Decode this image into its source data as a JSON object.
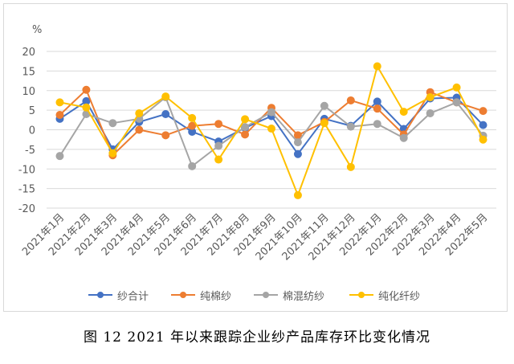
{
  "caption": "图 12   2021 年以来跟踪企业纱产品库存环比变化情况",
  "chart_data": {
    "type": "line",
    "ylabel": "%",
    "ylim": [
      -20,
      20
    ],
    "yticks": [
      20,
      15,
      10,
      5,
      0,
      -5,
      -10,
      -15,
      -20
    ],
    "grid": true,
    "legend_position": "bottom",
    "categories": [
      "2021年1月",
      "2021年2月",
      "2021年3月",
      "2021年4月",
      "2021年5月",
      "2021年6月",
      "2021年7月",
      "2021年8月",
      "2021年9月",
      "2021年10月",
      "2021年11月",
      "2021年12月",
      "2022年1月",
      "2022年2月",
      "2022年3月",
      "2022年4月",
      "2022年5月"
    ],
    "series": [
      {
        "name": "纱合计",
        "color": "#4472C4",
        "values": [
          2.8,
          7.3,
          -5.0,
          2.0,
          4.0,
          -0.5,
          -3.0,
          0.5,
          3.5,
          -6.2,
          2.8,
          1.0,
          7.2,
          0.2,
          8.0,
          8.2,
          1.2
        ]
      },
      {
        "name": "纯棉纱",
        "color": "#ED7D31",
        "values": [
          3.8,
          10.2,
          -6.5,
          0.0,
          -1.4,
          1.0,
          1.5,
          -1.2,
          5.6,
          -1.4,
          2.0,
          7.5,
          5.4,
          -1.2,
          9.6,
          7.0,
          4.8
        ]
      },
      {
        "name": "棉混纺纱",
        "color": "#A5A5A5",
        "values": [
          -6.7,
          4.0,
          1.7,
          2.8,
          8.3,
          -9.3,
          -4.1,
          0.7,
          4.5,
          -3.2,
          6.1,
          0.8,
          1.5,
          -2.1,
          4.2,
          7.0,
          -1.5
        ]
      },
      {
        "name": "纯化纤纱",
        "color": "#FFC000",
        "values": [
          7.0,
          5.7,
          -6.0,
          4.2,
          8.5,
          3.0,
          -7.6,
          2.7,
          0.3,
          -16.7,
          1.7,
          -9.5,
          16.2,
          4.6,
          8.3,
          10.8,
          -2.5
        ]
      }
    ]
  }
}
